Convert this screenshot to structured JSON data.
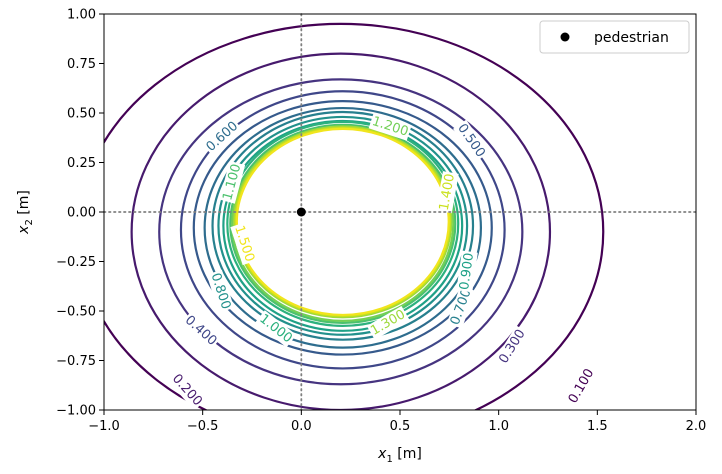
{
  "chart_data": {
    "type": "contour",
    "xlabel": "x",
    "xlabel_sub": "1",
    "xlabel_unit": " [m]",
    "ylabel": "x",
    "ylabel_sub": "2",
    "ylabel_unit": " [m]",
    "xlim": [
      -1.0,
      2.0
    ],
    "ylim": [
      -1.0,
      1.0
    ],
    "x_ticks": [
      -1.0,
      -0.5,
      0.0,
      0.5,
      1.0,
      1.5,
      2.0
    ],
    "y_ticks": [
      -1.0,
      -0.75,
      -0.5,
      -0.25,
      0.0,
      0.25,
      0.5,
      0.75,
      1.0
    ],
    "x_tick_labels": [
      "−1.0",
      "−0.5",
      "0.0",
      "0.5",
      "1.0",
      "1.5",
      "2.0"
    ],
    "y_tick_labels": [
      "−1.00",
      "−0.75",
      "−0.50",
      "−0.25",
      "0.00",
      "0.25",
      "0.50",
      "0.75",
      "1.00"
    ],
    "reference_lines": {
      "x": 0.0,
      "y": 0.0,
      "style": "dotted",
      "color": "#808080"
    },
    "points": [
      {
        "name": "pedestrian",
        "x": 0.0,
        "y": 0.0,
        "color": "#000000"
      }
    ],
    "legend": {
      "position": "top-right",
      "entries": [
        "pedestrian"
      ]
    },
    "colormap": "viridis",
    "levels": [
      0.1,
      0.2,
      0.3,
      0.4,
      0.5,
      0.6,
      0.7,
      0.8,
      0.9,
      1.0,
      1.1,
      1.2,
      1.3,
      1.4,
      1.5
    ],
    "level_colors": [
      "#440154",
      "#471a6d",
      "#463480",
      "#3f4789",
      "#365a8c",
      "#2e6d8e",
      "#27808e",
      "#22918c",
      "#1fa187",
      "#2cb17e",
      "#4bc16d",
      "#72cf56",
      "#9dd93b",
      "#cae11f",
      "#f1e51d"
    ],
    "contours": [
      {
        "level": 0.1,
        "center": [
          0.2,
          -0.1
        ],
        "rx": 1.33,
        "ry": 1.05
      },
      {
        "level": 0.2,
        "center": [
          0.2,
          -0.1
        ],
        "rx": 1.06,
        "ry": 0.9
      },
      {
        "level": 0.3,
        "center": [
          0.2,
          -0.1
        ],
        "rx": 0.92,
        "ry": 0.77
      },
      {
        "level": 0.4,
        "center": [
          0.21,
          -0.09
        ],
        "rx": 0.82,
        "ry": 0.7
      },
      {
        "level": 0.5,
        "center": [
          0.21,
          -0.08
        ],
        "rx": 0.755,
        "ry": 0.64
      },
      {
        "level": 0.6,
        "center": [
          0.21,
          -0.08
        ],
        "rx": 0.7,
        "ry": 0.605
      },
      {
        "level": 0.7,
        "center": [
          0.21,
          -0.07
        ],
        "rx": 0.66,
        "ry": 0.575
      },
      {
        "level": 0.8,
        "center": [
          0.21,
          -0.07
        ],
        "rx": 0.63,
        "ry": 0.55
      },
      {
        "level": 0.9,
        "center": [
          0.21,
          -0.07
        ],
        "rx": 0.605,
        "ry": 0.53
      },
      {
        "level": 1.0,
        "center": [
          0.21,
          -0.06
        ],
        "rx": 0.585,
        "ry": 0.515
      },
      {
        "level": 1.1,
        "center": [
          0.21,
          -0.06
        ],
        "rx": 0.57,
        "ry": 0.5
      },
      {
        "level": 1.2,
        "center": [
          0.21,
          -0.06
        ],
        "rx": 0.56,
        "ry": 0.49
      },
      {
        "level": 1.3,
        "center": [
          0.21,
          -0.05
        ],
        "rx": 0.55,
        "ry": 0.482
      },
      {
        "level": 1.4,
        "center": [
          0.21,
          -0.05
        ],
        "rx": 0.543,
        "ry": 0.475
      },
      {
        "level": 1.5,
        "center": [
          0.21,
          -0.05
        ],
        "rx": 0.537,
        "ry": 0.47
      }
    ],
    "contour_labels": [
      {
        "text": "0.100",
        "x": 1.42,
        "y": -0.88,
        "angle": -60,
        "level_index": 0
      },
      {
        "text": "0.200",
        "x": -0.58,
        "y": -0.9,
        "angle": 48,
        "level_index": 1
      },
      {
        "text": "0.300",
        "x": 1.07,
        "y": -0.68,
        "angle": -58,
        "level_index": 2
      },
      {
        "text": "0.400",
        "x": -0.51,
        "y": -0.6,
        "angle": 42,
        "level_index": 3
      },
      {
        "text": "0.500",
        "x": 0.86,
        "y": 0.36,
        "angle": 55,
        "level_index": 4
      },
      {
        "text": "0.600",
        "x": -0.4,
        "y": 0.38,
        "angle": -42,
        "level_index": 5
      },
      {
        "text": "0.700",
        "x": 0.81,
        "y": -0.48,
        "angle": -70,
        "level_index": 6
      },
      {
        "text": "0.800",
        "x": -0.41,
        "y": -0.4,
        "angle": 72,
        "level_index": 7
      },
      {
        "text": "0.900",
        "x": 0.84,
        "y": -0.3,
        "angle": -82,
        "level_index": 8
      },
      {
        "text": "1.000",
        "x": -0.13,
        "y": -0.59,
        "angle": 38,
        "level_index": 9
      },
      {
        "text": "1.100",
        "x": -0.35,
        "y": 0.15,
        "angle": -75,
        "level_index": 10
      },
      {
        "text": "1.200",
        "x": 0.45,
        "y": 0.43,
        "angle": 18,
        "level_index": 11
      },
      {
        "text": "1.300",
        "x": 0.44,
        "y": -0.56,
        "angle": -30,
        "level_index": 12
      },
      {
        "text": "1.400",
        "x": 0.74,
        "y": 0.1,
        "angle": -80,
        "level_index": 13
      },
      {
        "text": "1.500",
        "x": -0.29,
        "y": -0.16,
        "angle": 72,
        "level_index": 14
      }
    ]
  }
}
